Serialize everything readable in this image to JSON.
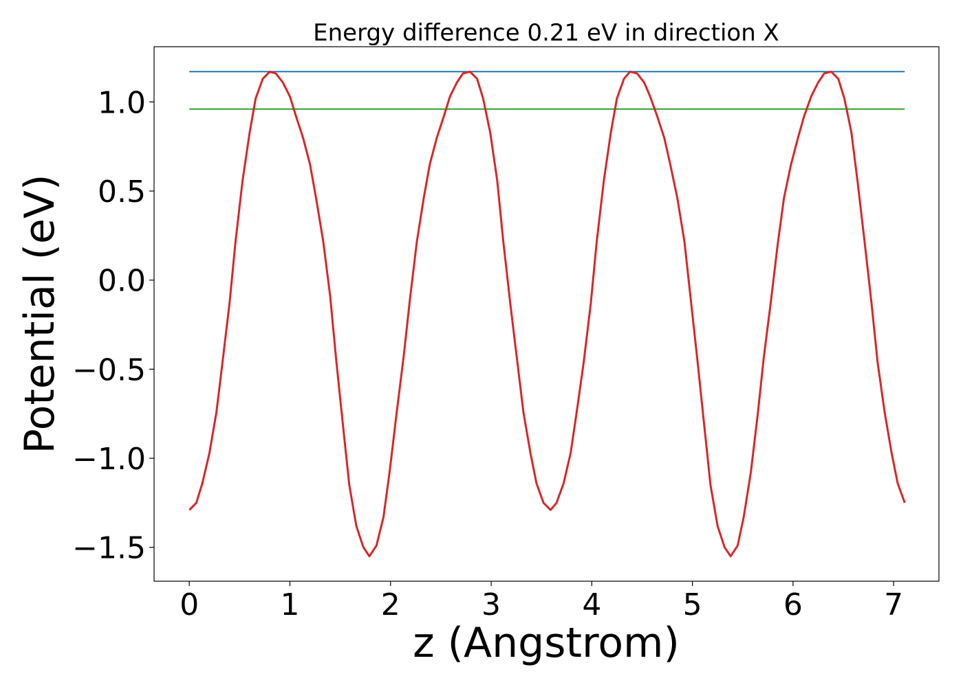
{
  "chart_data": {
    "type": "line",
    "title": "Energy difference 0.21 eV in direction X",
    "xlabel": "z (Angstrom)",
    "ylabel": "Potential (eV)",
    "xlim": [
      -0.35,
      7.45
    ],
    "ylim": [
      -1.69,
      1.31
    ],
    "xticks": [
      0,
      1,
      2,
      3,
      4,
      5,
      6,
      7
    ],
    "xtick_labels": [
      "0",
      "1",
      "2",
      "3",
      "4",
      "5",
      "6",
      "7"
    ],
    "yticks": [
      1.0,
      0.5,
      0.0,
      -0.5,
      -1.0,
      -1.5
    ],
    "ytick_labels": [
      "1.0",
      "0.5",
      "0.0",
      "−0.5",
      "−1.0",
      "−1.5"
    ],
    "grid": false,
    "series": [
      {
        "color": "#d62728",
        "x": [
          0.0,
          0.07,
          0.13,
          0.2,
          0.27,
          0.33,
          0.4,
          0.46,
          0.53,
          0.6,
          0.66,
          0.73,
          0.8,
          0.86,
          0.93,
          1.0,
          1.06,
          1.13,
          1.2,
          1.26,
          1.33,
          1.4,
          1.46,
          1.53,
          1.59,
          1.66,
          1.73,
          1.79,
          1.86,
          1.93,
          1.99,
          2.06,
          2.13,
          2.19,
          2.26,
          2.33,
          2.39,
          2.46,
          2.53,
          2.59,
          2.66,
          2.72,
          2.79,
          2.86,
          2.92,
          2.99,
          3.06,
          3.12,
          3.19,
          3.26,
          3.32,
          3.39,
          3.45,
          3.52,
          3.59,
          3.65,
          3.72,
          3.79,
          3.85,
          3.92,
          3.99,
          4.05,
          4.12,
          4.19,
          4.25,
          4.32,
          4.38,
          4.45,
          4.52,
          4.58,
          4.65,
          4.72,
          4.78,
          4.85,
          4.92,
          4.98,
          5.05,
          5.12,
          5.18,
          5.25,
          5.32,
          5.38,
          5.45,
          5.51,
          5.58,
          5.65,
          5.71,
          5.78,
          5.85,
          5.91,
          5.98,
          6.05,
          6.11,
          6.18,
          6.25,
          6.31,
          6.38,
          6.45,
          6.51,
          6.58,
          6.64,
          6.71,
          6.78,
          6.84,
          6.91,
          6.98,
          7.04,
          7.11
        ],
        "y": [
          -1.29,
          -1.25,
          -1.14,
          -0.97,
          -0.74,
          -0.46,
          -0.13,
          0.22,
          0.56,
          0.83,
          1.02,
          1.13,
          1.17,
          1.16,
          1.11,
          1.03,
          0.92,
          0.8,
          0.65,
          0.46,
          0.22,
          -0.09,
          -0.45,
          -0.83,
          -1.15,
          -1.38,
          -1.5,
          -1.55,
          -1.49,
          -1.33,
          -1.08,
          -0.75,
          -0.43,
          -0.12,
          0.21,
          0.46,
          0.65,
          0.8,
          0.92,
          1.03,
          1.11,
          1.16,
          1.17,
          1.13,
          1.02,
          0.83,
          0.56,
          0.22,
          -0.13,
          -0.46,
          -0.74,
          -0.97,
          -1.14,
          -1.25,
          -1.29,
          -1.25,
          -1.14,
          -0.97,
          -0.74,
          -0.46,
          -0.13,
          0.22,
          0.56,
          0.83,
          1.02,
          1.13,
          1.17,
          1.16,
          1.11,
          1.03,
          0.92,
          0.8,
          0.65,
          0.46,
          0.22,
          -0.09,
          -0.45,
          -0.83,
          -1.15,
          -1.38,
          -1.5,
          -1.55,
          -1.49,
          -1.33,
          -1.08,
          -0.75,
          -0.43,
          -0.12,
          0.21,
          0.46,
          0.65,
          0.8,
          0.92,
          1.03,
          1.11,
          1.16,
          1.17,
          1.13,
          1.02,
          0.83,
          0.56,
          0.22,
          -0.13,
          -0.46,
          -0.74,
          -0.97,
          -1.14,
          -1.25
        ]
      }
    ],
    "hlines": [
      {
        "y": 1.17,
        "xmin": 0.0,
        "xmax": 7.11,
        "color": "#1f77b4"
      },
      {
        "y": 0.96,
        "xmin": 0.0,
        "xmax": 7.11,
        "color": "#2ca02c"
      }
    ]
  }
}
